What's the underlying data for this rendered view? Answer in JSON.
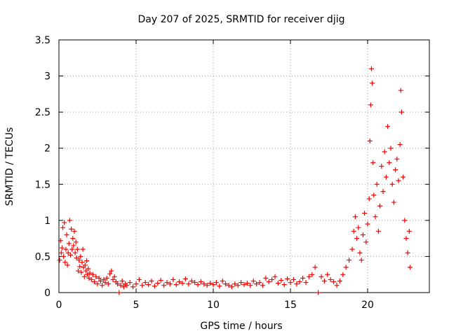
{
  "chart_data": {
    "type": "scatter",
    "title": "Day 207 of 2025, SRMTID for receiver djig",
    "xlabel": "GPS time / hours",
    "ylabel": "SRMTID / TECUs",
    "xlim": [
      0,
      24
    ],
    "ylim": [
      0,
      3.5
    ],
    "xticks": [
      0,
      5,
      10,
      15,
      20
    ],
    "xtick_labels": [
      "0",
      "5",
      "10",
      "15",
      "20"
    ],
    "yticks": [
      0,
      0.5,
      1,
      1.5,
      2,
      2.5,
      3,
      3.5
    ],
    "ytick_labels": [
      "0",
      "0.5",
      "1",
      "1.5",
      "2",
      "2.5",
      "3",
      "3.5"
    ],
    "grid": true,
    "marker": "+",
    "series": [
      {
        "name": "SRMTID",
        "color": "#ff0000",
        "points": [
          [
            0.05,
            0.45
          ],
          [
            0.1,
            0.72
          ],
          [
            0.15,
            0.55
          ],
          [
            0.2,
            0.62
          ],
          [
            0.25,
            0.9
          ],
          [
            0.3,
            0.5
          ],
          [
            0.35,
            0.97
          ],
          [
            0.4,
            0.42
          ],
          [
            0.45,
            0.6
          ],
          [
            0.5,
            0.8
          ],
          [
            0.55,
            0.38
          ],
          [
            0.6,
            0.55
          ],
          [
            0.65,
            0.68
          ],
          [
            0.7,
            1.0
          ],
          [
            0.75,
            0.52
          ],
          [
            0.8,
            0.88
          ],
          [
            0.85,
            0.6
          ],
          [
            0.9,
            0.75
          ],
          [
            0.95,
            0.65
          ],
          [
            1.0,
            0.85
          ],
          [
            1.05,
            0.55
          ],
          [
            1.1,
            0.7
          ],
          [
            1.15,
            0.48
          ],
          [
            1.2,
            0.6
          ],
          [
            1.25,
            0.3
          ],
          [
            1.3,
            0.45
          ],
          [
            1.35,
            0.36
          ],
          [
            1.4,
            0.5
          ],
          [
            1.45,
            0.28
          ],
          [
            1.5,
            0.42
          ],
          [
            1.55,
            0.6
          ],
          [
            1.6,
            0.35
          ],
          [
            1.65,
            0.22
          ],
          [
            1.7,
            0.38
          ],
          [
            1.75,
            0.3
          ],
          [
            1.8,
            0.44
          ],
          [
            1.85,
            0.25
          ],
          [
            1.9,
            0.33
          ],
          [
            1.95,
            0.2
          ],
          [
            2.0,
            0.27
          ],
          [
            2.1,
            0.18
          ],
          [
            2.2,
            0.25
          ],
          [
            2.3,
            0.15
          ],
          [
            2.4,
            0.22
          ],
          [
            2.5,
            0.12
          ],
          [
            2.6,
            0.2
          ],
          [
            2.7,
            0.16
          ],
          [
            2.8,
            0.1
          ],
          [
            2.9,
            0.18
          ],
          [
            3.0,
            0.14
          ],
          [
            3.1,
            0.2
          ],
          [
            3.2,
            0.12
          ],
          [
            3.3,
            0.26
          ],
          [
            3.4,
            0.3
          ],
          [
            3.5,
            0.18
          ],
          [
            3.6,
            0.22
          ],
          [
            3.7,
            0.15
          ],
          [
            3.8,
            0.12
          ],
          [
            3.9,
            0.0
          ],
          [
            4.0,
            0.1
          ],
          [
            4.1,
            0.16
          ],
          [
            4.2,
            0.08
          ],
          [
            4.3,
            0.12
          ],
          [
            4.4,
            0.1
          ],
          [
            4.6,
            0.14
          ],
          [
            4.8,
            0.08
          ],
          [
            5.0,
            0.12
          ],
          [
            5.2,
            0.18
          ],
          [
            5.4,
            0.1
          ],
          [
            5.6,
            0.14
          ],
          [
            5.8,
            0.11
          ],
          [
            6.0,
            0.16
          ],
          [
            6.2,
            0.09
          ],
          [
            6.4,
            0.13
          ],
          [
            6.6,
            0.17
          ],
          [
            6.8,
            0.1
          ],
          [
            7.0,
            0.14
          ],
          [
            7.2,
            0.12
          ],
          [
            7.4,
            0.18
          ],
          [
            7.6,
            0.11
          ],
          [
            7.8,
            0.15
          ],
          [
            8.0,
            0.13
          ],
          [
            8.2,
            0.19
          ],
          [
            8.4,
            0.12
          ],
          [
            8.6,
            0.16
          ],
          [
            8.8,
            0.14
          ],
          [
            9.0,
            0.11
          ],
          [
            9.2,
            0.15
          ],
          [
            9.4,
            0.12
          ],
          [
            9.6,
            0.1
          ],
          [
            9.8,
            0.13
          ],
          [
            10.0,
            0.11
          ],
          [
            10.2,
            0.14
          ],
          [
            10.4,
            0.09
          ],
          [
            10.6,
            0.16
          ],
          [
            10.8,
            0.12
          ],
          [
            11.0,
            0.1
          ],
          [
            11.2,
            0.08
          ],
          [
            11.4,
            0.12
          ],
          [
            11.6,
            0.1
          ],
          [
            11.8,
            0.14
          ],
          [
            12.0,
            0.11
          ],
          [
            12.2,
            0.13
          ],
          [
            12.4,
            0.1
          ],
          [
            12.6,
            0.16
          ],
          [
            12.8,
            0.12
          ],
          [
            13.0,
            0.14
          ],
          [
            13.2,
            0.1
          ],
          [
            13.4,
            0.2
          ],
          [
            13.6,
            0.15
          ],
          [
            13.8,
            0.18
          ],
          [
            14.0,
            0.22
          ],
          [
            14.2,
            0.13
          ],
          [
            14.4,
            0.17
          ],
          [
            14.6,
            0.11
          ],
          [
            14.8,
            0.19
          ],
          [
            15.0,
            0.14
          ],
          [
            15.2,
            0.18
          ],
          [
            15.4,
            0.12
          ],
          [
            15.6,
            0.15
          ],
          [
            15.8,
            0.2
          ],
          [
            16.0,
            0.14
          ],
          [
            16.2,
            0.22
          ],
          [
            16.4,
            0.25
          ],
          [
            16.6,
            0.35
          ],
          [
            16.8,
            0.0
          ],
          [
            17.0,
            0.22
          ],
          [
            17.2,
            0.16
          ],
          [
            17.4,
            0.25
          ],
          [
            17.6,
            0.18
          ],
          [
            17.8,
            0.15
          ],
          [
            18.0,
            0.1
          ],
          [
            18.2,
            0.16
          ],
          [
            18.4,
            0.25
          ],
          [
            18.6,
            0.35
          ],
          [
            18.8,
            0.45
          ],
          [
            19.0,
            0.6
          ],
          [
            19.1,
            0.85
          ],
          [
            19.2,
            1.05
          ],
          [
            19.3,
            0.75
          ],
          [
            19.4,
            0.9
          ],
          [
            19.5,
            0.55
          ],
          [
            19.6,
            0.45
          ],
          [
            19.7,
            0.8
          ],
          [
            19.8,
            1.1
          ],
          [
            19.9,
            0.7
          ],
          [
            20.0,
            0.95
          ],
          [
            20.1,
            1.3
          ],
          [
            20.15,
            2.1
          ],
          [
            20.2,
            2.6
          ],
          [
            20.25,
            3.1
          ],
          [
            20.3,
            2.9
          ],
          [
            20.35,
            1.8
          ],
          [
            20.4,
            1.35
          ],
          [
            20.5,
            1.05
          ],
          [
            20.6,
            1.5
          ],
          [
            20.7,
            0.85
          ],
          [
            20.8,
            1.2
          ],
          [
            20.9,
            1.75
          ],
          [
            21.0,
            1.4
          ],
          [
            21.1,
            1.95
          ],
          [
            21.2,
            1.6
          ],
          [
            21.3,
            2.3
          ],
          [
            21.4,
            1.8
          ],
          [
            21.5,
            2.0
          ],
          [
            21.6,
            1.5
          ],
          [
            21.7,
            1.25
          ],
          [
            21.8,
            1.7
          ],
          [
            21.9,
            1.85
          ],
          [
            22.0,
            1.55
          ],
          [
            22.1,
            2.05
          ],
          [
            22.15,
            2.8
          ],
          [
            22.2,
            2.5
          ],
          [
            22.3,
            1.6
          ],
          [
            22.4,
            1.0
          ],
          [
            22.5,
            0.75
          ],
          [
            22.6,
            0.55
          ],
          [
            22.7,
            0.85
          ],
          [
            22.75,
            0.35
          ]
        ]
      }
    ]
  }
}
